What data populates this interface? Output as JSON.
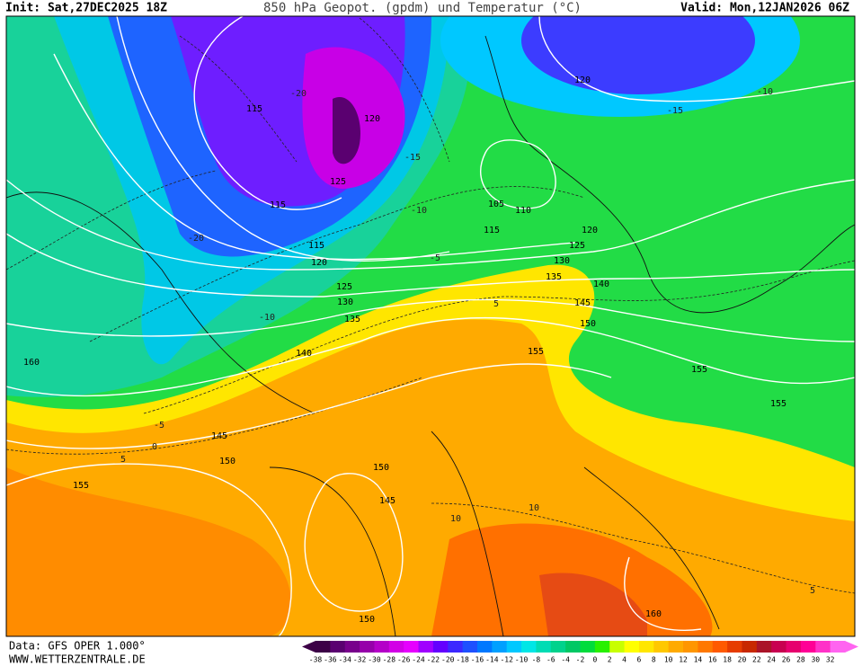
{
  "header": {
    "init": "Init: Sat,27DEC2025 18Z",
    "title": "850 hPa Geopot. (gpdm) und Temperatur (°C)",
    "valid": "Valid: Mon,12JAN2026 06Z"
  },
  "footer": {
    "source": "Data: GFS OPER 1.000°",
    "site": "WWW.WETTERZENTRALE.DE"
  },
  "map": {
    "geopotential_labels": [
      115,
      120,
      125,
      115,
      115,
      120,
      125,
      130,
      135,
      140,
      105,
      110,
      115,
      120,
      125,
      130,
      135,
      140,
      145,
      150,
      155,
      155,
      155,
      120,
      160,
      145,
      150,
      155,
      150,
      145,
      150,
      160
    ],
    "temperature_labels": [
      -20,
      -15,
      -10,
      -5,
      -10,
      -5,
      0,
      5,
      5,
      10,
      10,
      5,
      -10,
      -15,
      -20
    ]
  },
  "legend": {
    "labels": [
      -38,
      -36,
      -34,
      -32,
      -30,
      -28,
      -26,
      -24,
      -22,
      -20,
      -18,
      -16,
      -14,
      -12,
      -10,
      -8,
      -6,
      -4,
      -2,
      0,
      2,
      4,
      6,
      8,
      10,
      12,
      14,
      16,
      18,
      20,
      22,
      24,
      26,
      28,
      30,
      32
    ],
    "colors": [
      "#3c0046",
      "#5a0070",
      "#78008c",
      "#9600aa",
      "#b400c8",
      "#d200e6",
      "#e600ff",
      "#a000ff",
      "#6400ff",
      "#3c28ff",
      "#1e50ff",
      "#0078ff",
      "#00a0ff",
      "#00c8ff",
      "#00e6e6",
      "#00dcb4",
      "#00d28c",
      "#00c864",
      "#00dc3c",
      "#28f000",
      "#c8ff00",
      "#ffff00",
      "#ffe600",
      "#ffc800",
      "#ffaa00",
      "#ff9600",
      "#ff7800",
      "#ff5a00",
      "#e63c00",
      "#c82800",
      "#aa1428",
      "#c80050",
      "#e6006e",
      "#ff0096",
      "#ff32c8",
      "#ff64f0"
    ]
  }
}
